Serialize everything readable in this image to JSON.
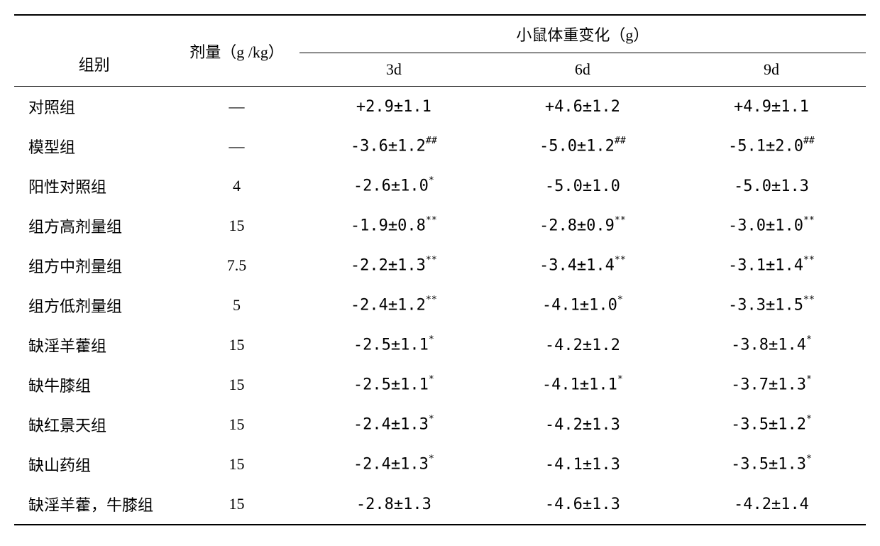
{
  "table": {
    "type": "table",
    "background_color": "#ffffff",
    "text_color": "#000000",
    "border_color": "#000000",
    "font_family": "SimSun",
    "font_size_pt": 16,
    "columns": {
      "group_label": "组别",
      "dose_label": "剂量（g /kg）",
      "weight_change_label": "小鼠体重变化（g）",
      "sub_headers": [
        "3d",
        "6d",
        "9d"
      ]
    },
    "col_widths": [
      "230px",
      "180px",
      "270px",
      "270px",
      "270px"
    ],
    "rows": [
      {
        "group": "对照组",
        "dose": "—",
        "d3": "+2.9±1.1",
        "d3_sup": "",
        "d6": "+4.6±1.2",
        "d6_sup": "",
        "d9": "+4.9±1.1",
        "d9_sup": ""
      },
      {
        "group": "模型组",
        "dose": "—",
        "d3": "-3.6±1.2",
        "d3_sup": "##",
        "d6": "-5.0±1.2",
        "d6_sup": "##",
        "d9": "-5.1±2.0",
        "d9_sup": "##"
      },
      {
        "group": "阳性对照组",
        "dose": "4",
        "d3": "-2.6±1.0",
        "d3_sup": "*",
        "d6": "-5.0±1.0",
        "d6_sup": "",
        "d9": "-5.0±1.3",
        "d9_sup": ""
      },
      {
        "group": "组方高剂量组",
        "dose": "15",
        "d3": "-1.9±0.8",
        "d3_sup": "**",
        "d6": "-2.8±0.9",
        "d6_sup": "**",
        "d9": "-3.0±1.0",
        "d9_sup": "**"
      },
      {
        "group": "组方中剂量组",
        "dose": "7.5",
        "d3": "-2.2±1.3",
        "d3_sup": "**",
        "d6": "-3.4±1.4",
        "d6_sup": "**",
        "d9": "-3.1±1.4",
        "d9_sup": "**"
      },
      {
        "group": "组方低剂量组",
        "dose": "5",
        "d3": "-2.4±1.2",
        "d3_sup": "**",
        "d6": "-4.1±1.0",
        "d6_sup": "*",
        "d9": "-3.3±1.5",
        "d9_sup": "**"
      },
      {
        "group": "缺淫羊藿组",
        "dose": "15",
        "d3": "-2.5±1.1",
        "d3_sup": "*",
        "d6": "-4.2±1.2",
        "d6_sup": "",
        "d9": "-3.8±1.4",
        "d9_sup": "*"
      },
      {
        "group": "缺牛膝组",
        "dose": "15",
        "d3": "-2.5±1.1",
        "d3_sup": "*",
        "d6": "-4.1±1.1",
        "d6_sup": "*",
        "d9": "-3.7±1.3",
        "d9_sup": "*"
      },
      {
        "group": "缺红景天组",
        "dose": "15",
        "d3": "-2.4±1.3",
        "d3_sup": "*",
        "d6": "-4.2±1.3",
        "d6_sup": "",
        "d9": "-3.5±1.2",
        "d9_sup": "*"
      },
      {
        "group": "缺山药组",
        "dose": "15",
        "d3": "-2.4±1.3",
        "d3_sup": "*",
        "d6": "-4.1±1.3",
        "d6_sup": "",
        "d9": "-3.5±1.3",
        "d9_sup": "*"
      },
      {
        "group": "缺淫羊藿，牛膝组",
        "dose": "15",
        "d3": "-2.8±1.3",
        "d3_sup": "",
        "d6": "-4.6±1.3",
        "d6_sup": "",
        "d9": "-4.2±1.4",
        "d9_sup": ""
      }
    ]
  }
}
